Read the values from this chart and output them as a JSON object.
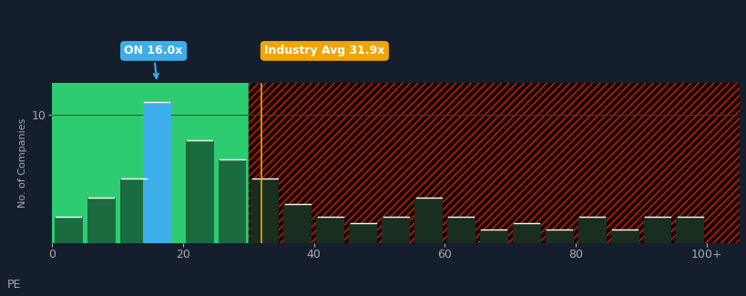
{
  "background_color": "#151e2d",
  "plot_bg_left": "#2ecc71",
  "normal_bar_color_left": "#1a6b3f",
  "normal_bar_color_right": "#1a2e20",
  "highlight_bar_color": "#3daee9",
  "hatch_fill_color": "#1a0505",
  "hatch_edge_color": "#cc2200",
  "industry_line_color": "#f0a500",
  "on_value": 16.0,
  "industry_avg": 31.9,
  "cutoff_x": 30,
  "bar_centers": [
    2.5,
    7.5,
    12.5,
    16.0,
    22.5,
    27.5,
    32.5,
    37.5,
    42.5,
    47.5,
    52.5,
    57.5,
    62.5,
    67.5,
    72.5,
    77.5,
    82.5,
    87.5,
    92.5,
    97.5
  ],
  "bar_values": [
    2.0,
    3.5,
    5.0,
    11.0,
    8.0,
    6.5,
    5.0,
    3.0,
    2.0,
    1.5,
    2.0,
    3.5,
    2.0,
    1.0,
    1.5,
    1.0,
    2.0,
    1.0,
    2.0,
    2.0
  ],
  "bar_width": 4.3,
  "annotation_on": "ON 16.0x",
  "annotation_industry": "Industry Avg 31.9x",
  "annotation_on_bg": "#3daee9",
  "annotation_industry_bg": "#f0a500",
  "ylabel": "No. of Companies",
  "xlabel": "PE",
  "tick_color": "#aaaaaa",
  "grid_color": "#2a3f5f",
  "xlim": [
    0,
    105
  ],
  "ylim": [
    0,
    12.5
  ],
  "ytick_val": 10,
  "xtick_positions": [
    0,
    20,
    40,
    60,
    80,
    100
  ],
  "xtick_labels": [
    "0",
    "20",
    "40",
    "60",
    "80",
    "100+"
  ]
}
